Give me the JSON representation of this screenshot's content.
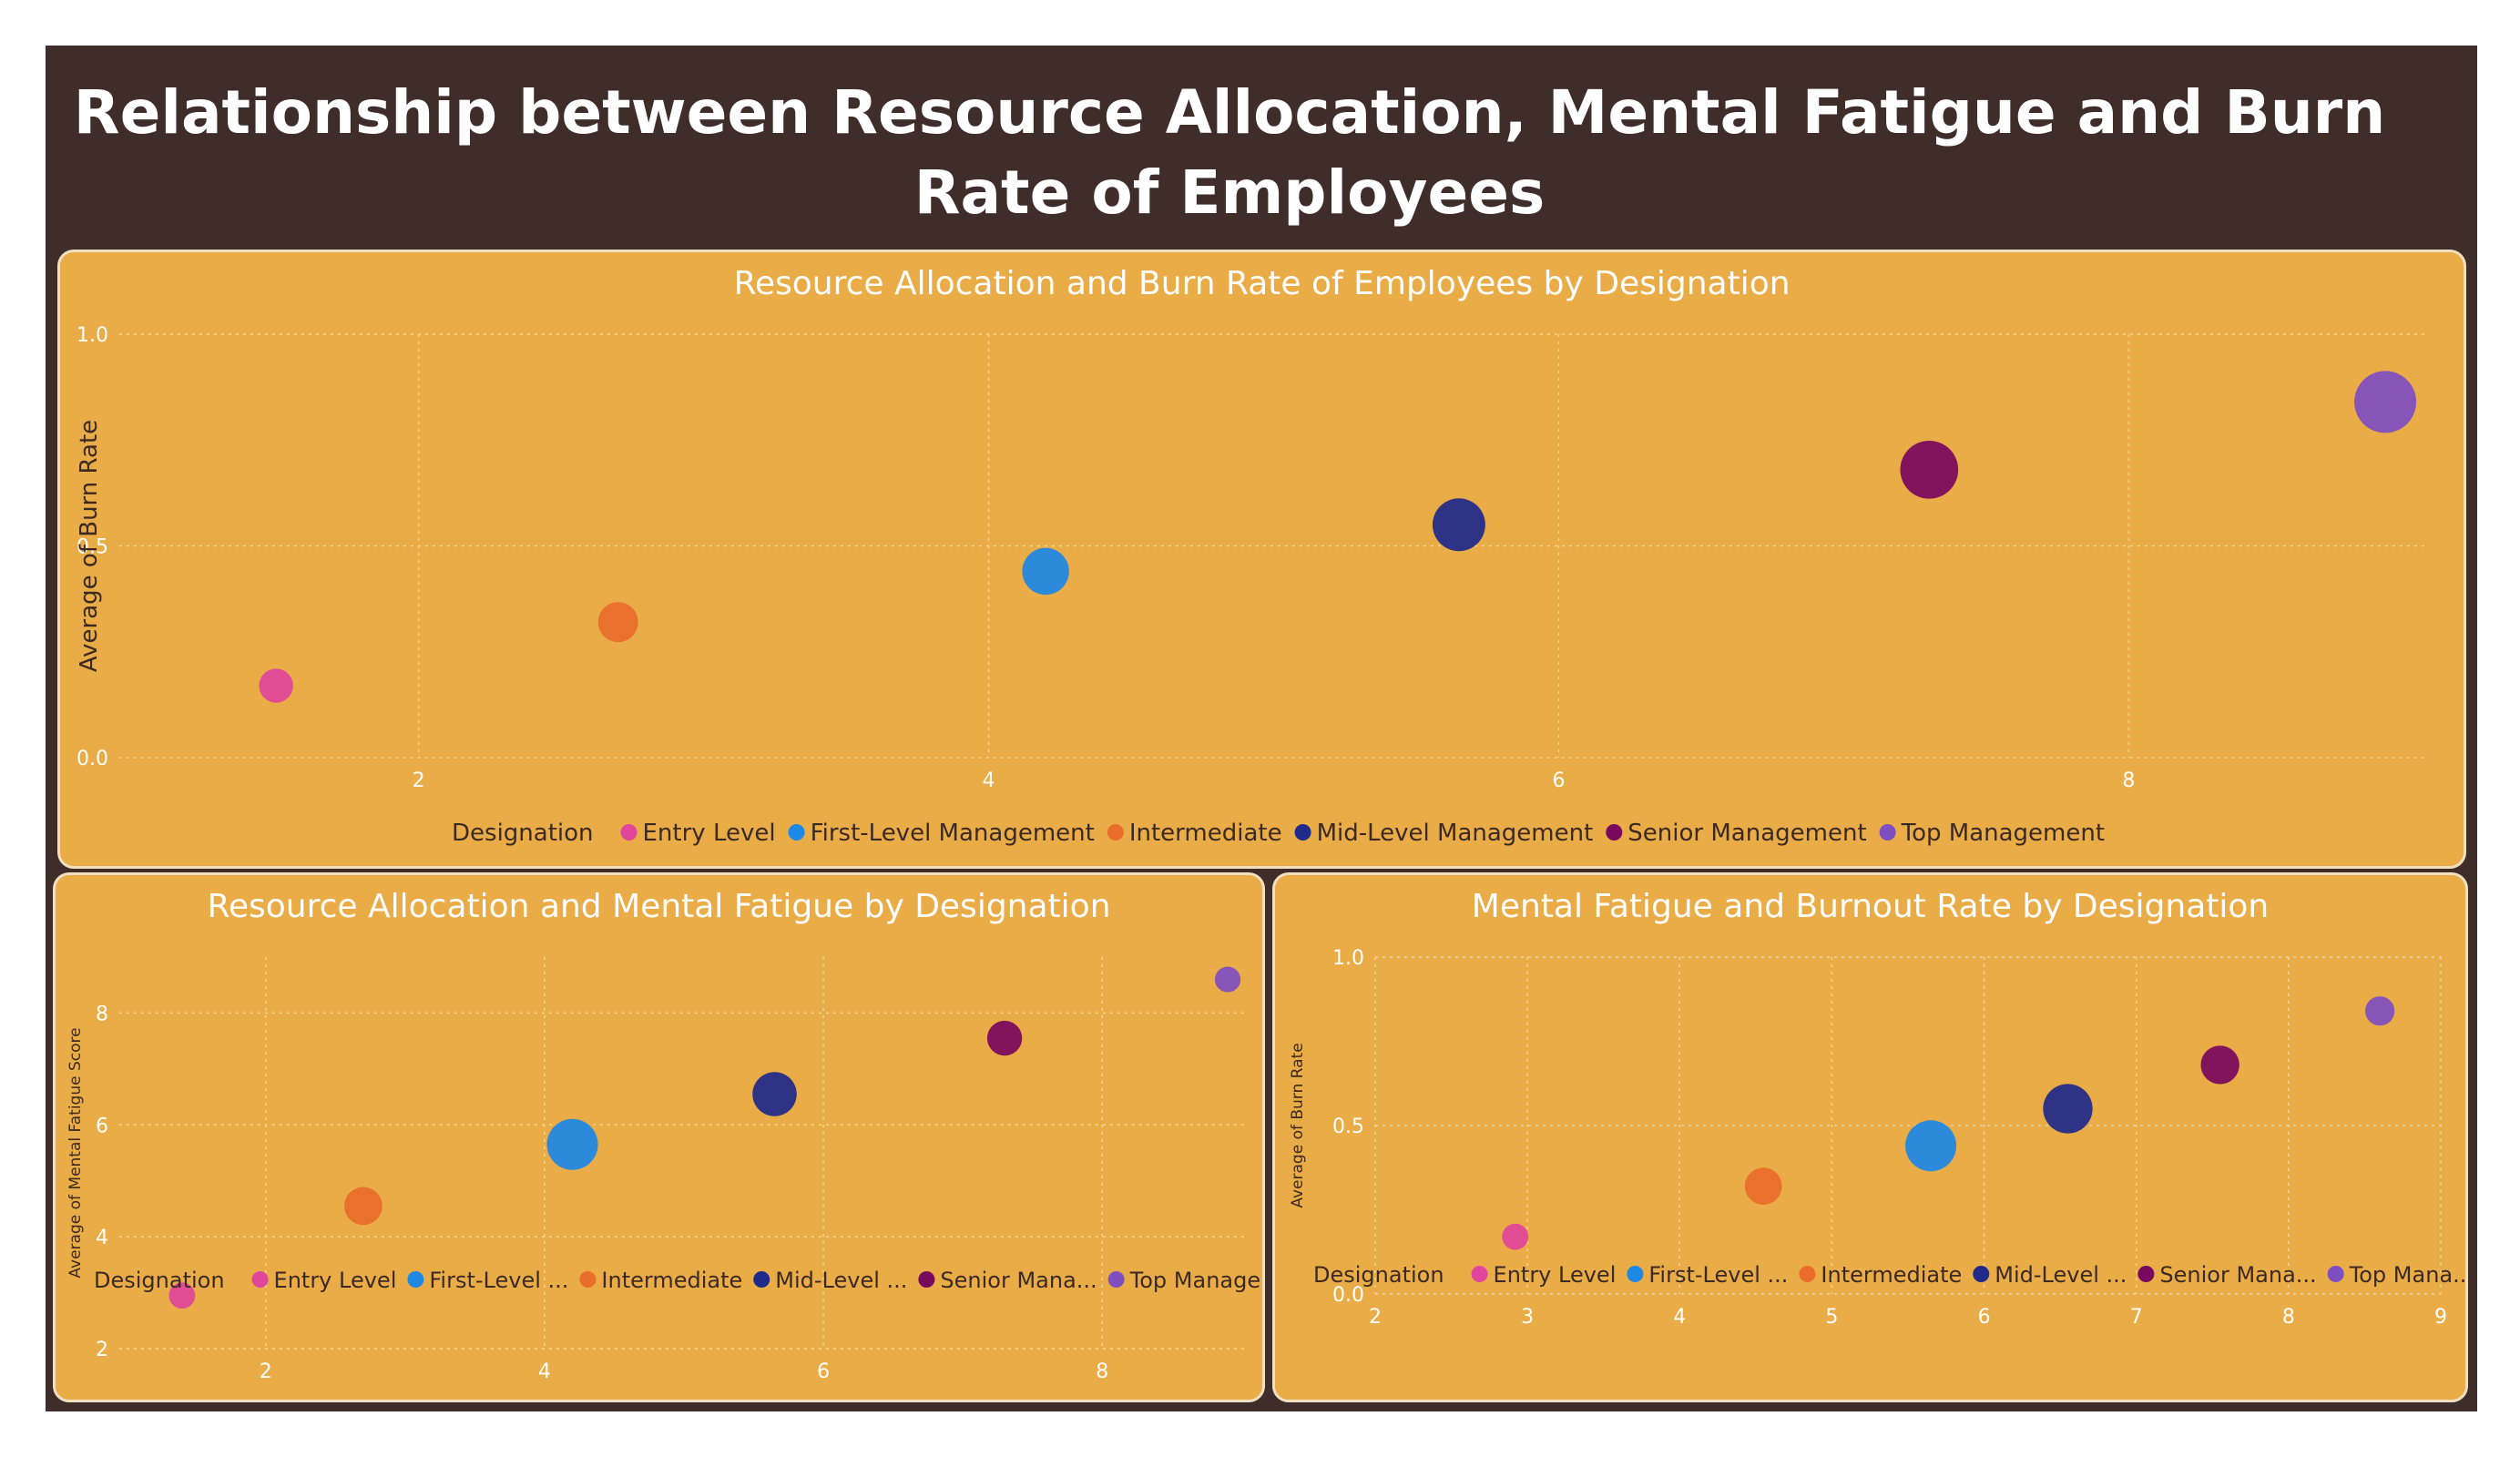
{
  "dashboard": {
    "title": "Relationship between Resource Allocation, Mental Fatigue and Burn Rate of Employees"
  },
  "colors": {
    "background": "#3f2d2a",
    "panel": "#e9ac46",
    "panel_border": "#f2dfc2"
  },
  "chart_data": [
    {
      "type": "scatter",
      "title": "Resource Allocation and Burn Rate of Employees by Designation",
      "xlabel": "",
      "ylabel": "Average of Burn Rate",
      "xlim": [
        0.95,
        9.05
      ],
      "ylim": [
        0,
        1.0
      ],
      "x_ticks": [
        "2",
        "4",
        "6",
        "8"
      ],
      "y_ticks": [
        "0.0",
        "0.5",
        "1.0"
      ],
      "grid": true,
      "legend_title": "Designation",
      "legend_placement": "bottom",
      "legend_labels": [
        "Entry Level",
        "First-Level Management",
        "Intermediate",
        "Mid-Level Management",
        "Senior Management",
        "Top Management"
      ],
      "series": [
        {
          "name": "Entry Level",
          "color": "#e0469b",
          "x": 1.5,
          "y": 0.17,
          "size": 0.15
        },
        {
          "name": "Intermediate",
          "color": "#ea6d2b",
          "x": 2.7,
          "y": 0.32,
          "size": 0.33
        },
        {
          "name": "First-Level Management",
          "color": "#1e88e5",
          "x": 4.2,
          "y": 0.44,
          "size": 0.54
        },
        {
          "name": "Mid-Level Management",
          "color": "#1f2a8a",
          "x": 5.65,
          "y": 0.55,
          "size": 0.72
        },
        {
          "name": "Senior Management",
          "color": "#78095f",
          "x": 7.3,
          "y": 0.68,
          "size": 0.88
        },
        {
          "name": "Top Management",
          "color": "#7e4fc0",
          "x": 8.9,
          "y": 0.84,
          "size": 1.0
        }
      ]
    },
    {
      "type": "scatter",
      "title": "Resource Allocation and Mental Fatigue by Designation",
      "xlabel": "",
      "ylabel": "Average of Mental Fatigue Score",
      "xlim": [
        0.95,
        9.05
      ],
      "ylim": [
        2,
        9.0
      ],
      "x_ticks": [
        "2",
        "4",
        "6",
        "8"
      ],
      "y_ticks": [
        "2",
        "4",
        "6",
        "8"
      ],
      "grid": true,
      "legend_title": "Designation",
      "legend_placement": "bottom",
      "legend_labels": [
        "Entry Level",
        "First-Level ...",
        "Intermediate",
        "Mid-Level ...",
        "Senior Mana...",
        "Top Manage..."
      ],
      "series": [
        {
          "name": "Entry Level",
          "color": "#e0469b",
          "x": 1.4,
          "y": 2.95,
          "size": 0.2
        },
        {
          "name": "Intermediate",
          "color": "#ea6d2b",
          "x": 2.7,
          "y": 4.55,
          "size": 0.58
        },
        {
          "name": "First-Level Management",
          "color": "#1e88e5",
          "x": 4.2,
          "y": 5.65,
          "size": 1.0
        },
        {
          "name": "Mid-Level Management",
          "color": "#1f2a8a",
          "x": 5.65,
          "y": 6.55,
          "size": 0.78
        },
        {
          "name": "Senior Management",
          "color": "#78095f",
          "x": 7.3,
          "y": 7.55,
          "size": 0.48
        },
        {
          "name": "Top Management",
          "color": "#7e4fc0",
          "x": 8.9,
          "y": 8.6,
          "size": 0.18
        }
      ]
    },
    {
      "type": "scatter",
      "title": "Mental Fatigue and Burnout Rate by Designation",
      "xlabel": "",
      "ylabel": "Average of Burn Rate",
      "xlim": [
        2,
        9
      ],
      "ylim": [
        0,
        1.0
      ],
      "x_ticks": [
        "2",
        "3",
        "4",
        "5",
        "6",
        "7",
        "8",
        "9"
      ],
      "y_ticks": [
        "0.0",
        "0.5",
        "1.0"
      ],
      "grid": true,
      "legend_title": "Designation",
      "legend_placement": "bottom",
      "legend_labels": [
        "Entry Level",
        "First-Level ...",
        "Intermediate",
        "Mid-Level ...",
        "Senior Mana...",
        "Top Mana..."
      ],
      "series": [
        {
          "name": "Entry Level",
          "color": "#e0469b",
          "x": 2.92,
          "y": 0.17,
          "size": 0.2
        },
        {
          "name": "Intermediate",
          "color": "#ea6d2b",
          "x": 4.55,
          "y": 0.32,
          "size": 0.55
        },
        {
          "name": "First-Level Management",
          "color": "#1e88e5",
          "x": 5.65,
          "y": 0.44,
          "size": 1.0
        },
        {
          "name": "Mid-Level Management",
          "color": "#1f2a8a",
          "x": 6.55,
          "y": 0.55,
          "size": 0.95
        },
        {
          "name": "Senior Management",
          "color": "#78095f",
          "x": 7.55,
          "y": 0.68,
          "size": 0.6
        },
        {
          "name": "Top Management",
          "color": "#7e4fc0",
          "x": 8.6,
          "y": 0.84,
          "size": 0.3
        }
      ]
    }
  ]
}
